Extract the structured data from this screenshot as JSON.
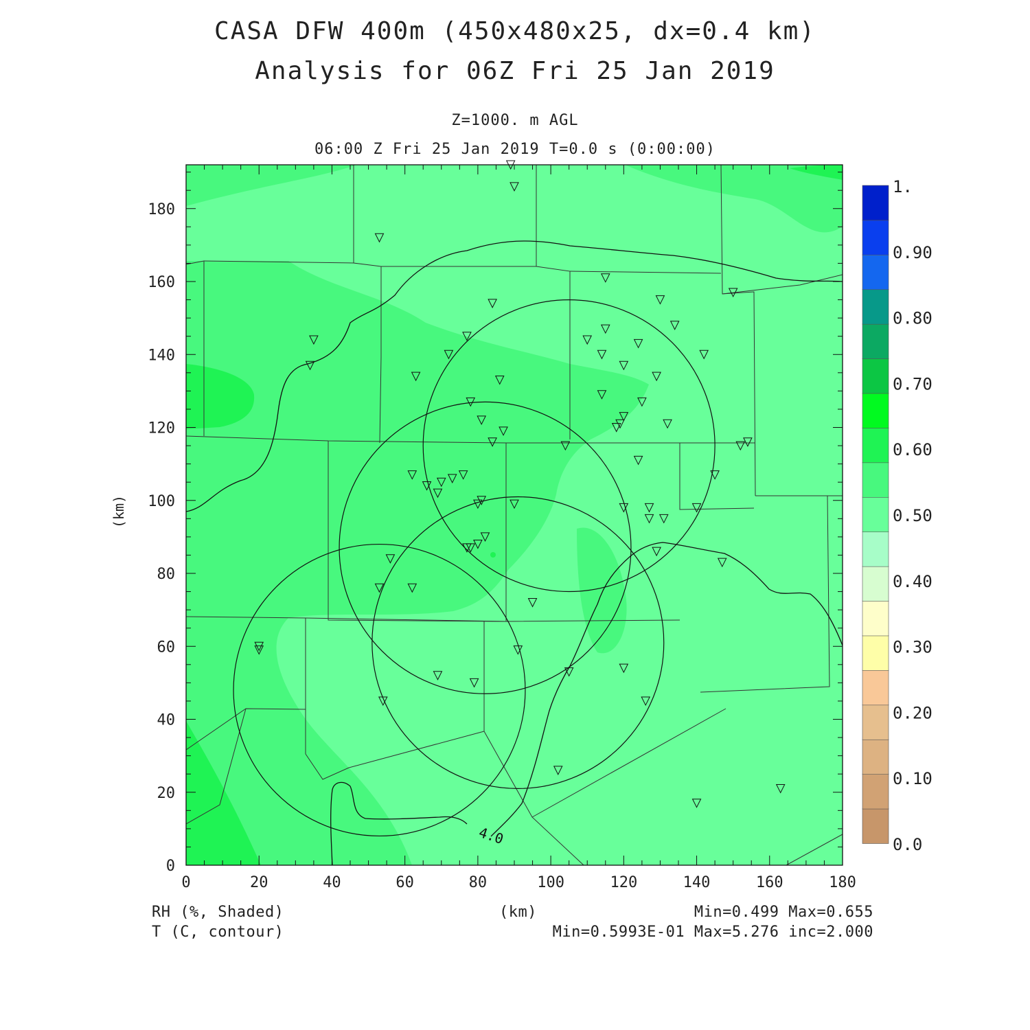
{
  "header": {
    "title_line1": "CASA DFW 400m (450x480x25, dx=0.4 km)",
    "title_line2": "Analysis for 06Z Fri 25 Jan 2019",
    "level": "Z=1000. m AGL",
    "time": "06:00 Z Fri 25 Jan 2019    T=0.0 s (0:00:00)"
  },
  "axes": {
    "x_label": "(km)",
    "y_label": "(km)",
    "x_ticks": [
      "0",
      "20",
      "40",
      "60",
      "80",
      "100",
      "120",
      "140",
      "160",
      "180"
    ],
    "y_ticks": [
      "0",
      "20",
      "40",
      "60",
      "80",
      "100",
      "120",
      "140",
      "160",
      "180"
    ],
    "x_range": [
      0,
      180
    ],
    "y_range": [
      0,
      192
    ]
  },
  "colorbar": {
    "labels": [
      "1.",
      "0.90",
      "0.80",
      "0.70",
      "0.60",
      "0.50",
      "0.40",
      "0.30",
      "0.20",
      "0.10",
      "0.0"
    ],
    "colors": [
      "#c7966a",
      "#d1a274",
      "#ddb282",
      "#e6bf8e",
      "#f9c898",
      "#fefea8",
      "#fefeca",
      "#d7fdd0",
      "#a7fdc8",
      "#68ff9a",
      "#48f87e",
      "#1ff354",
      "#01fa20",
      "#0cc644",
      "#0ca962",
      "#079989",
      "#1467ef",
      "#0a3fee",
      "#0020cb"
    ]
  },
  "footer": {
    "left_line1": "RH (%, Shaded)",
    "left_line2": "T (C, contour)",
    "center": "(km)",
    "right_line1": "Min=0.499 Max=0.655",
    "right_line2": "Min=0.5993E-01 Max=5.276 inc=2.000"
  },
  "contour_label": "4.0",
  "chart_data": {
    "type": "heatmap",
    "field_shaded": "RH (%, Shaded)",
    "field_contour": "T (C, contour)",
    "rh_min": 0.499,
    "rh_max": 0.655,
    "t_min": 0.05993,
    "t_max": 5.276,
    "t_inc": 2.0,
    "contour_levels": [
      4.0
    ],
    "radar_rings": [
      {
        "center": [
          105,
          115
        ],
        "radius_km": 40
      },
      {
        "center": [
          82,
          87
        ],
        "radius_km": 40
      },
      {
        "center": [
          91,
          61
        ],
        "radius_km": 40
      },
      {
        "center": [
          53,
          48
        ],
        "radius_km": 40
      }
    ],
    "stations": [
      [
        89,
        192
      ],
      [
        90,
        186
      ],
      [
        53,
        172
      ],
      [
        115,
        161
      ],
      [
        150,
        157
      ],
      [
        130,
        155
      ],
      [
        84,
        154
      ],
      [
        134,
        148
      ],
      [
        115,
        147
      ],
      [
        77,
        145
      ],
      [
        35,
        144
      ],
      [
        110,
        144
      ],
      [
        124,
        143
      ],
      [
        72,
        140
      ],
      [
        114,
        140
      ],
      [
        142,
        140
      ],
      [
        34,
        137
      ],
      [
        120,
        137
      ],
      [
        63,
        134
      ],
      [
        86,
        133
      ],
      [
        129,
        134
      ],
      [
        114,
        129
      ],
      [
        125,
        127
      ],
      [
        78,
        127
      ],
      [
        120,
        123
      ],
      [
        81,
        122
      ],
      [
        119,
        121
      ],
      [
        132,
        121
      ],
      [
        118,
        120
      ],
      [
        87,
        119
      ],
      [
        84,
        116
      ],
      [
        154,
        116
      ],
      [
        152,
        115
      ],
      [
        104,
        115
      ],
      [
        124,
        111
      ],
      [
        62,
        107
      ],
      [
        76,
        107
      ],
      [
        145,
        107
      ],
      [
        73,
        106
      ],
      [
        70,
        105
      ],
      [
        66,
        104
      ],
      [
        69,
        102
      ],
      [
        81,
        100
      ],
      [
        80,
        99
      ],
      [
        90,
        99
      ],
      [
        120,
        98
      ],
      [
        127,
        98
      ],
      [
        140,
        98
      ],
      [
        127,
        95
      ],
      [
        131,
        95
      ],
      [
        82,
        90
      ],
      [
        80,
        88
      ],
      [
        77,
        87
      ],
      [
        78,
        87
      ],
      [
        129,
        86
      ],
      [
        56,
        84
      ],
      [
        147,
        83
      ],
      [
        53,
        76
      ],
      [
        62,
        76
      ],
      [
        95,
        72
      ],
      [
        20,
        60
      ],
      [
        20,
        59
      ],
      [
        91,
        59
      ],
      [
        120,
        54
      ],
      [
        105,
        53
      ],
      [
        69,
        52
      ],
      [
        79,
        50
      ],
      [
        126,
        45
      ],
      [
        54,
        45
      ],
      [
        102,
        26
      ],
      [
        163,
        21
      ],
      [
        140,
        17
      ]
    ]
  }
}
